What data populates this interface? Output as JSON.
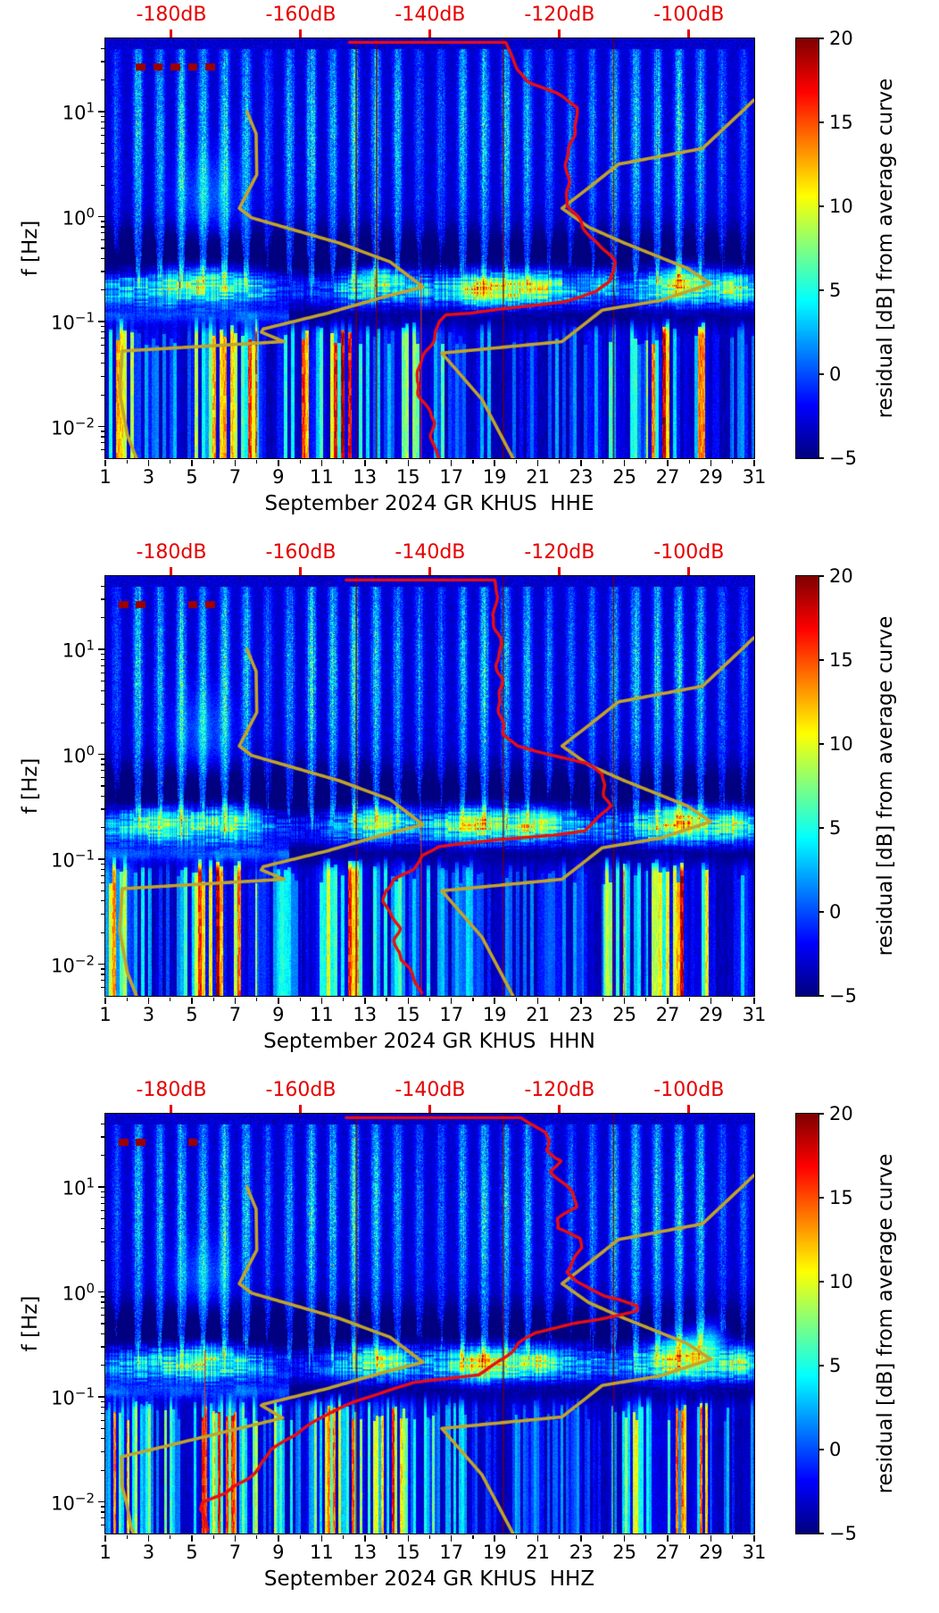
{
  "chart_data": {
    "type": "heatmap",
    "description": "Daily residual PSD spectrograms for station GR KHUS, September 2024, three channels",
    "x_axis": {
      "ticks": [
        1,
        3,
        5,
        7,
        9,
        11,
        13,
        15,
        17,
        19,
        21,
        23,
        25,
        27,
        29,
        31
      ],
      "range_days": [
        1,
        31
      ]
    },
    "y_axis": {
      "label": "f [Hz]",
      "scale": "log",
      "base": "10",
      "decade_exponents": [
        -2,
        -1,
        0,
        1
      ],
      "decade_exponent_labels": [
        "−2",
        "−1",
        "0",
        "1"
      ],
      "range_hz": [
        0.005,
        50
      ]
    },
    "top_axis": {
      "tick_values": [
        -180,
        -160,
        -140,
        -120,
        -100
      ],
      "tick_labels": [
        "-180dB",
        "-160dB",
        "-140dB",
        "-120dB",
        "-100dB"
      ],
      "range_db": [
        -190.21,
        -89.9
      ],
      "color": "#e60000"
    },
    "colorbar": {
      "label": "residual [dB] from average curve",
      "tick_values": [
        20,
        15,
        10,
        5,
        0,
        -5
      ],
      "tick_labels": [
        "20",
        "15",
        "10",
        "5",
        "0",
        "−5"
      ],
      "range": [
        -5,
        20
      ],
      "colormap": "jet"
    },
    "red_color": "#ea0e10",
    "noise_models": {
      "color": "#c2a42a",
      "low_curve_db_logf": [
        [
          -168.3,
          1.0
        ],
        [
          -166.9,
          0.79
        ],
        [
          -166.8,
          0.4
        ],
        [
          -169.5,
          0.08
        ],
        [
          -167.6,
          -0.01
        ],
        [
          -154.1,
          -0.25
        ],
        [
          -146.2,
          -0.43
        ],
        [
          -141.1,
          -0.67
        ],
        [
          -146.9,
          -0.76
        ],
        [
          -155.9,
          -0.92
        ],
        [
          -165.8,
          -1.07
        ]
      ],
      "low_tail": {
        "hhe": [
          [
            -166.1,
            -1.1
          ],
          [
            -162.6,
            -1.19
          ],
          [
            -187.6,
            -1.28
          ],
          [
            -188.0,
            -1.68
          ],
          [
            -187.3,
            -1.91
          ],
          [
            -186.8,
            -2.08
          ],
          [
            -185.8,
            -2.24
          ],
          [
            -185.4,
            -2.3
          ]
        ],
        "hhn": [
          [
            -166.1,
            -1.1
          ],
          [
            -162.6,
            -1.19
          ],
          [
            -187.6,
            -1.28
          ],
          [
            -188.0,
            -1.68
          ],
          [
            -187.3,
            -1.91
          ],
          [
            -186.8,
            -2.08
          ],
          [
            -185.8,
            -2.24
          ],
          [
            -185.4,
            -2.3
          ]
        ],
        "hhz": [
          [
            -166.1,
            -1.08
          ],
          [
            -162.8,
            -1.2
          ],
          [
            -187.7,
            -1.57
          ],
          [
            -187.6,
            -1.85
          ],
          [
            -186.9,
            -2.02
          ],
          [
            -186.1,
            -2.27
          ],
          [
            -185.8,
            -2.3
          ]
        ]
      },
      "high_curve_db_logf": [
        [
          -90.0,
          1.11
        ],
        [
          -91.5,
          1.02
        ],
        [
          -97.9,
          0.65
        ],
        [
          -110.9,
          0.5
        ],
        [
          -115.2,
          0.29
        ],
        [
          -119.6,
          0.08
        ],
        [
          -115.5,
          -0.1
        ],
        [
          -110.0,
          -0.25
        ],
        [
          -100.3,
          -0.49
        ],
        [
          -96.6,
          -0.64
        ],
        [
          -104.5,
          -0.8
        ],
        [
          -113.4,
          -0.89
        ],
        [
          -119.6,
          -1.19
        ],
        [
          -138.2,
          -1.3
        ],
        [
          -132.0,
          -1.74
        ],
        [
          -127.2,
          -2.3
        ]
      ]
    },
    "texture": {
      "day_amp": [
        0.45,
        0.95,
        0.8,
        0.95,
        0.85,
        1,
        0.9,
        0.5,
        0.8,
        1,
        0.9,
        1,
        0.95,
        0.8,
        0.55,
        0.5,
        0.85,
        1,
        0.9,
        0.85,
        0.55,
        0.5,
        0.6,
        0.9,
        1,
        0.9,
        0.95,
        0.85,
        0.55,
        0.5,
        0.8
      ],
      "day_micro": [
        0.7,
        0.75,
        0.9,
        0.95,
        1,
        0.95,
        0.9,
        0.7,
        0.45,
        0.35,
        0.45,
        0.8,
        0.9,
        0.85,
        0.7,
        0.75,
        0.9,
        1,
        0.95,
        1,
        0.9,
        0.8,
        0.7,
        0.6,
        0.5,
        0.9,
        1,
        0.95,
        0.8,
        0.9,
        0.7
      ],
      "day_low": [
        0.8,
        0.6,
        0.45,
        0.5,
        0.95,
        1,
        0.9,
        0.4,
        0.45,
        0.95,
        1,
        0.9,
        0.65,
        0.75,
        0.6,
        0.55,
        0.35,
        0.3,
        0.3,
        0.25,
        0.3,
        0.25,
        0.35,
        0.8,
        0.45,
        0.95,
        1,
        0.85,
        0.2,
        0.35,
        0.9
      ]
    },
    "panels": [
      {
        "key": "hhe",
        "name": "HHE",
        "xlabel": "September 2024 GR KHUS  HHE",
        "seed": 11,
        "red_curve_db_logf": [
          [
            -152.5,
            1.662
          ],
          [
            -128.3,
            1.662
          ],
          [
            -127.5,
            1.55
          ],
          [
            -126.5,
            1.4
          ],
          [
            -124.5,
            1.28
          ],
          [
            -121,
            1.18
          ],
          [
            -117.5,
            1.04
          ],
          [
            -117.2,
            0.9
          ],
          [
            -118.2,
            0.72
          ],
          [
            -118.4,
            0.55
          ],
          [
            -119,
            0.4
          ],
          [
            -118.6,
            0.3
          ],
          [
            -119,
            0.21
          ],
          [
            -118.8,
            0.1
          ],
          [
            -117.6,
            -0.01
          ],
          [
            -116.5,
            -0.1
          ],
          [
            -115.1,
            -0.19
          ],
          [
            -113.7,
            -0.26
          ],
          [
            -112.5,
            -0.34
          ],
          [
            -111.5,
            -0.43
          ],
          [
            -111.2,
            -0.52
          ],
          [
            -112.1,
            -0.62
          ],
          [
            -114.3,
            -0.71
          ],
          [
            -117.5,
            -0.77
          ],
          [
            -119.7,
            -0.81
          ],
          [
            -123.7,
            -0.84
          ],
          [
            -129.2,
            -0.88
          ],
          [
            -133.8,
            -0.92
          ],
          [
            -137.5,
            -0.935
          ],
          [
            -138.7,
            -1.0
          ],
          [
            -139.4,
            -1.11
          ],
          [
            -140.1,
            -1.24
          ],
          [
            -140.7,
            -1.34
          ],
          [
            -141.7,
            -1.47
          ],
          [
            -142.1,
            -1.57
          ],
          [
            -141.5,
            -1.7
          ],
          [
            -140.4,
            -1.83
          ],
          [
            -139.6,
            -1.96
          ],
          [
            -139.9,
            -2.09
          ],
          [
            -139.3,
            -2.2
          ],
          [
            -138.7,
            -2.3
          ]
        ],
        "event_line_days": [
          12.6,
          13.54,
          19.4,
          24.5
        ],
        "bright_line_days": [
          15.6
        ],
        "hotspots": [
          [
            5.6,
            -0.6,
            4.5,
            1.6,
            0.11
          ],
          [
            13.6,
            -0.58,
            6,
            0.7,
            0.08
          ],
          [
            18.4,
            -0.7,
            7,
            0.8,
            0.1
          ],
          [
            20.7,
            -0.66,
            6,
            0.9,
            0.1
          ],
          [
            24.0,
            -0.62,
            4,
            0.4,
            0.08
          ],
          [
            27.6,
            -0.6,
            8,
            0.8,
            0.11
          ],
          [
            30.1,
            -0.68,
            5,
            0.5,
            0.09
          ],
          [
            5.8,
            0.18,
            3.2,
            1.1,
            0.3
          ]
        ]
      },
      {
        "key": "hhn",
        "name": "HHN",
        "xlabel": "September 2024 GR KHUS  HHN",
        "seed": 22,
        "red_curve_db_logf": [
          [
            -153,
            1.662
          ],
          [
            -130,
            1.662
          ],
          [
            -129.6,
            1.5
          ],
          [
            -130.2,
            1.33
          ],
          [
            -129.2,
            1.15
          ],
          [
            -129.3,
            1.02
          ],
          [
            -129.8,
            0.86
          ],
          [
            -129.3,
            0.72
          ],
          [
            -129.5,
            0.6
          ],
          [
            -129.1,
            0.49
          ],
          [
            -128.9,
            0.35
          ],
          [
            -128.5,
            0.19
          ],
          [
            -126.2,
            0.08
          ],
          [
            -120.9,
            -0.01
          ],
          [
            -116.1,
            -0.09
          ],
          [
            -113.6,
            -0.19
          ],
          [
            -113.1,
            -0.3
          ],
          [
            -113.2,
            -0.4
          ],
          [
            -112.5,
            -0.49
          ],
          [
            -114.0,
            -0.62
          ],
          [
            -115.7,
            -0.73
          ],
          [
            -120.5,
            -0.77
          ],
          [
            -128.8,
            -0.81
          ],
          [
            -135.2,
            -0.85
          ],
          [
            -138.9,
            -0.88
          ],
          [
            -141.0,
            -0.96
          ],
          [
            -141.4,
            -1.02
          ],
          [
            -142.6,
            -1.1
          ],
          [
            -145.8,
            -1.19
          ],
          [
            -147.4,
            -1.3
          ],
          [
            -147.2,
            -1.4
          ],
          [
            -146.2,
            -1.5
          ],
          [
            -145.4,
            -1.59
          ],
          [
            -144.8,
            -1.66
          ],
          [
            -145.1,
            -1.76
          ],
          [
            -144.7,
            -1.86
          ],
          [
            -144.4,
            -1.96
          ],
          [
            -143.4,
            -2.03
          ],
          [
            -142.6,
            -2.13
          ],
          [
            -141.4,
            -2.27
          ]
        ],
        "event_line_days": [
          12.6,
          19.4,
          24.5
        ],
        "bright_line_days": [
          15.6
        ],
        "hotspots": [
          [
            3.5,
            -0.62,
            5,
            1.2,
            0.1
          ],
          [
            7.0,
            -0.6,
            5,
            0.8,
            0.1
          ],
          [
            13.6,
            -0.6,
            7,
            0.8,
            0.09
          ],
          [
            18.2,
            -0.65,
            6,
            0.8,
            0.1
          ],
          [
            21.0,
            -0.64,
            6,
            0.8,
            0.1
          ],
          [
            27.6,
            -0.62,
            8,
            0.8,
            0.11
          ],
          [
            30.0,
            -0.66,
            5,
            0.5,
            0.09
          ],
          [
            5.5,
            0.2,
            3.0,
            1.0,
            0.3
          ]
        ]
      },
      {
        "key": "hhz",
        "name": "HHZ",
        "xlabel": "September 2024 GR KHUS  HHZ",
        "seed": 33,
        "red_curve_db_logf": [
          [
            -153,
            1.662
          ],
          [
            -126,
            1.662
          ],
          [
            -124.7,
            1.61
          ],
          [
            -122.1,
            1.52
          ],
          [
            -121.7,
            1.45
          ],
          [
            -122.3,
            1.35
          ],
          [
            -121.0,
            1.28
          ],
          [
            -120.0,
            1.25
          ],
          [
            -121.0,
            1.15
          ],
          [
            -119.6,
            1.06
          ],
          [
            -117.9,
            0.95
          ],
          [
            -117.2,
            0.81
          ],
          [
            -120.0,
            0.7
          ],
          [
            -120.7,
            0.61
          ],
          [
            -119.2,
            0.57
          ],
          [
            -117.1,
            0.51
          ],
          [
            -116.8,
            0.42
          ],
          [
            -117.5,
            0.33
          ],
          [
            -119.2,
            0.19
          ],
          [
            -117.2,
            0.1
          ],
          [
            -115.0,
            0.03
          ],
          [
            -112.4,
            -0.04
          ],
          [
            -110.3,
            -0.07
          ],
          [
            -107.9,
            -0.13
          ],
          [
            -108.2,
            -0.18
          ],
          [
            -110.9,
            -0.22
          ],
          [
            -113.7,
            -0.26
          ],
          [
            -117.8,
            -0.3
          ],
          [
            -123.7,
            -0.39
          ],
          [
            -126.5,
            -0.49
          ],
          [
            -129.2,
            -0.64
          ],
          [
            -132.4,
            -0.79
          ],
          [
            -142.1,
            -0.86
          ],
          [
            -146.8,
            -0.94
          ],
          [
            -151.3,
            -1.04
          ],
          [
            -155.0,
            -1.15
          ],
          [
            -159.6,
            -1.3
          ],
          [
            -162.3,
            -1.4
          ],
          [
            -164.7,
            -1.51
          ],
          [
            -166.8,
            -1.68
          ],
          [
            -168.8,
            -1.79
          ],
          [
            -171.6,
            -1.92
          ],
          [
            -175.0,
            -2.0
          ],
          [
            -175.4,
            -2.07
          ],
          [
            -174.8,
            -2.16
          ],
          [
            -174.1,
            -2.27
          ]
        ],
        "event_line_days": [
          12.6,
          19.4,
          24.5
        ],
        "bright_line_days": [
          5.6
        ],
        "day_low": [
          0.85,
          0.7,
          0.6,
          0.65,
          0.9,
          1,
          0.85,
          0.6,
          0.5,
          0.8,
          0.9,
          0.85,
          0.8,
          0.9,
          0.7,
          0.5,
          0.4,
          0.3,
          0.3,
          0.25,
          0.3,
          0.3,
          0.35,
          0.6,
          0.9,
          1,
          0.95,
          0.85,
          0.3,
          0.25,
          0.85
        ],
        "hotspots": [
          [
            5.6,
            -0.62,
            4,
            1.2,
            0.1
          ],
          [
            13.8,
            -0.62,
            6,
            0.8,
            0.09
          ],
          [
            18.5,
            -0.68,
            8,
            0.8,
            0.1
          ],
          [
            21.0,
            -0.64,
            5,
            0.8,
            0.09
          ],
          [
            27.7,
            -0.55,
            9,
            0.9,
            0.14
          ],
          [
            29.0,
            -0.42,
            6,
            0.5,
            0.12
          ],
          [
            30.3,
            -0.65,
            5,
            0.4,
            0.09
          ],
          [
            5.5,
            0.15,
            3.0,
            1.0,
            0.25
          ]
        ]
      }
    ]
  }
}
